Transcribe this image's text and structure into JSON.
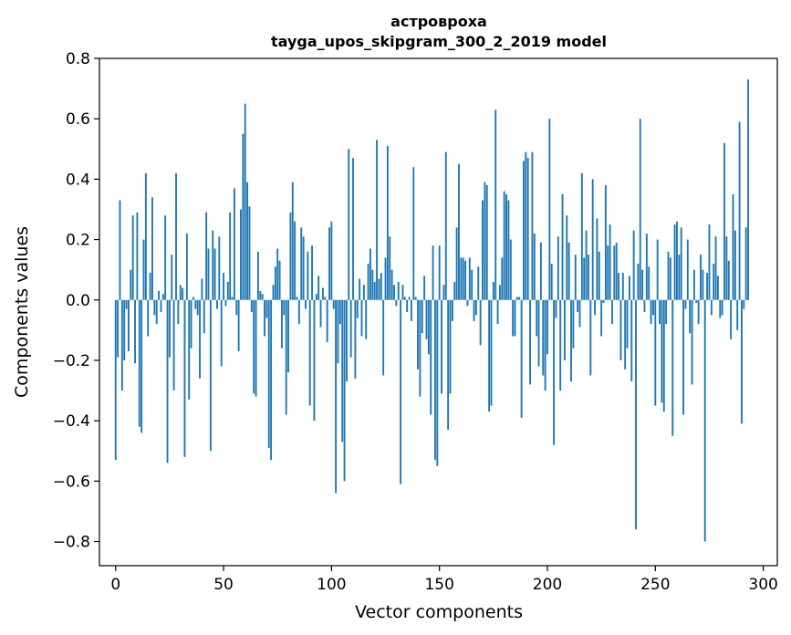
{
  "chart_data": {
    "type": "bar",
    "title": "астровроха",
    "subtitle": "tayga_upos_skipgram_300_2_2019 model",
    "xlabel": "Vector components",
    "ylabel": "Components values",
    "xlim": [
      -7.5,
      306.5
    ],
    "ylim": [
      -0.88,
      0.8
    ],
    "xticks": [
      0,
      50,
      100,
      150,
      200,
      250,
      300
    ],
    "xtick_labels": [
      "0",
      "50",
      "100",
      "150",
      "200",
      "250",
      "300"
    ],
    "yticks": [
      -0.8,
      -0.6,
      -0.4,
      -0.2,
      0.0,
      0.2,
      0.4,
      0.6,
      0.8
    ],
    "ytick_labels": [
      "−0.8",
      "−0.6",
      "−0.4",
      "−0.2",
      "0.0",
      "0.2",
      "0.4",
      "0.6",
      "0.8"
    ],
    "bar_color": "#1f77b4",
    "x": "0..299",
    "values": [
      -0.53,
      -0.19,
      0.33,
      -0.3,
      -0.2,
      -0.03,
      -0.17,
      0.1,
      0.28,
      -0.21,
      0.29,
      -0.42,
      -0.44,
      0.2,
      0.42,
      -0.12,
      0.09,
      0.34,
      -0.05,
      -0.08,
      0.03,
      -0.04,
      0.02,
      0.28,
      -0.54,
      -0.19,
      0.15,
      -0.3,
      0.42,
      -0.08,
      0.05,
      0.04,
      -0.52,
      0.22,
      -0.33,
      -0.16,
      0.01,
      -0.03,
      -0.05,
      -0.26,
      0.07,
      -0.11,
      0.29,
      0.17,
      -0.5,
      0.23,
      0.17,
      -0.03,
      0.21,
      -0.22,
      0.09,
      -0.02,
      0.06,
      0.29,
      0.01,
      0.37,
      -0.05,
      -0.17,
      0.3,
      0.55,
      0.65,
      0.39,
      0.31,
      -0.04,
      -0.31,
      -0.32,
      0.16,
      0.03,
      0.02,
      -0.12,
      -0.06,
      -0.49,
      -0.53,
      0.05,
      0.11,
      0.17,
      0.13,
      -0.16,
      -0.05,
      -0.38,
      -0.24,
      0.29,
      0.39,
      0.26,
      0.01,
      -0.08,
      0.24,
      0.21,
      -0.03,
      0.16,
      -0.35,
      0.18,
      -0.4,
      0.02,
      0.08,
      -0.09,
      0.04,
      0.01,
      -0.14,
      0.24,
      0.26,
      -0.03,
      -0.64,
      -0.21,
      -0.08,
      -0.47,
      -0.6,
      -0.27,
      0.5,
      -0.19,
      0.47,
      -0.26,
      -0.06,
      0.07,
      -0.12,
      0.05,
      -0.13,
      0.12,
      0.17,
      0.1,
      0.06,
      0.53,
      0.07,
      0.09,
      -0.25,
      0.14,
      0.51,
      0.21,
      0.1,
      0.05,
      -0.02,
      0.06,
      -0.61,
      0.05,
      0.01,
      -0.04,
      0.01,
      -0.07,
      0.44,
      0.01,
      -0.23,
      -0.32,
      -0.11,
      0.08,
      -0.13,
      -0.18,
      -0.38,
      0.18,
      -0.53,
      -0.55,
      0.18,
      -0.31,
      0.05,
      0.49,
      -0.43,
      -0.31,
      -0.07,
      0.06,
      0.24,
      0.45,
      0.14,
      0.14,
      0.13,
      -0.02,
      0.14,
      0.1,
      -0.07,
      -0.05,
      0.11,
      -0.15,
      0.33,
      0.39,
      0.38,
      -0.37,
      -0.35,
      0.06,
      0.63,
      -0.08,
      0.05,
      0.14,
      0.36,
      0.35,
      0.33,
      0.2,
      -0.12,
      -0.12,
      0.01,
      0.01,
      -0.39,
      0.46,
      0.49,
      0.47,
      -0.28,
      0.49,
      0.22,
      -0.12,
      -0.22,
      0.19,
      -0.25,
      -0.3,
      -0.18,
      0.6,
      0.12,
      -0.48,
      -0.06,
      0.21,
      -0.3,
      0.35,
      -0.2,
      0.28,
      0.19,
      -0.27,
      -0.16,
      0.15,
      -0.04,
      -0.09,
      0.42,
      0.14,
      0.23,
      0.15,
      -0.25,
      0.4,
      -0.05,
      0.27,
      0.16,
      -0.12,
      -0.01,
      0.38,
      0.18,
      0.25,
      -0.08,
      0.18,
      0.19,
      0.09,
      -0.2,
      0.09,
      -0.23,
      -0.16,
      0.08,
      -0.27,
      0.23,
      -0.76,
      0.12,
      0.6,
      0.1,
      -0.04,
      0.22,
      0.11,
      -0.08,
      -0.05,
      -0.35,
      0.2,
      -0.08,
      -0.34,
      -0.37,
      -0.08,
      0.16,
      0.14,
      -0.45,
      0.25,
      0.26,
      0.15,
      0.24,
      -0.38,
      -0.03,
      0.2,
      -0.11,
      -0.28,
      0.1,
      -0.01,
      -0.08,
      0.15,
      0.1,
      -0.8,
      0.09,
      0.25,
      -0.05,
      0.12,
      0.21,
      0.08,
      -0.06,
      -0.05,
      0.52,
      0.21,
      0.13,
      -0.13,
      0.35,
      0.23,
      -0.1,
      0.59,
      -0.41,
      -0.03,
      0.24,
      0.73
    ]
  }
}
